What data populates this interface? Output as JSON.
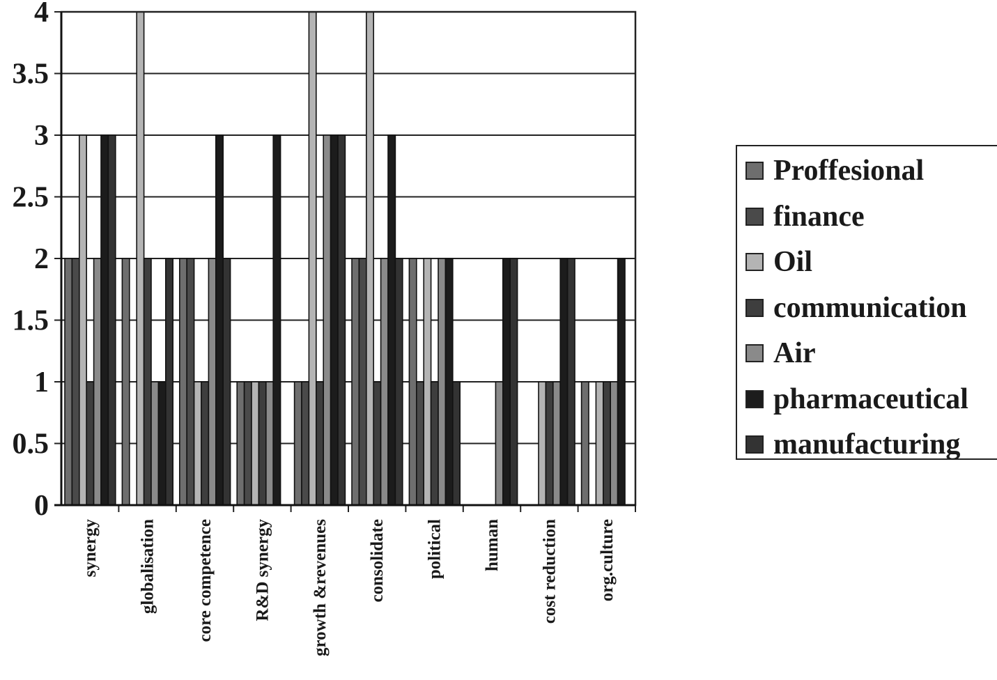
{
  "chart_data": {
    "type": "bar",
    "categories": [
      "synergy",
      "globalisation",
      "core competence",
      "R&D synergy",
      "growth &revenues",
      "consolidate",
      "political",
      "human",
      "cost reduction",
      "org.culture"
    ],
    "ylim": [
      0,
      4
    ],
    "yticks": [
      "0",
      "0.5",
      "1",
      "1.5",
      "2",
      "2.5",
      "3",
      "3.5",
      "4"
    ],
    "grid": true,
    "legend_position": "right",
    "series": [
      {
        "name": "Proffesional",
        "color": "#6e6e6e",
        "values": [
          2,
          2,
          2,
          1,
          1,
          2,
          2,
          0,
          0,
          1
        ]
      },
      {
        "name": "finance",
        "color": "#4a4a4a",
        "values": [
          2,
          0,
          2,
          1,
          1,
          2,
          1,
          0,
          0,
          0
        ]
      },
      {
        "name": "Oil",
        "color": "#b4b4b4",
        "values": [
          3,
          4,
          1,
          1,
          4,
          4,
          2,
          0,
          1,
          1
        ]
      },
      {
        "name": "communication",
        "color": "#3e3e3e",
        "values": [
          1,
          2,
          1,
          1,
          1,
          1,
          1,
          0,
          1,
          1
        ]
      },
      {
        "name": "Air",
        "color": "#8a8a8a",
        "values": [
          2,
          1,
          2,
          1,
          3,
          2,
          2,
          1,
          1,
          1
        ]
      },
      {
        "name": "pharmaceutical",
        "color": "#1c1c1c",
        "values": [
          3,
          1,
          3,
          3,
          3,
          3,
          2,
          2,
          2,
          2
        ]
      },
      {
        "name": "manufacturing",
        "color": "#333333",
        "values": [
          3,
          2,
          2,
          0,
          3,
          2,
          1,
          2,
          2,
          0
        ]
      }
    ]
  }
}
